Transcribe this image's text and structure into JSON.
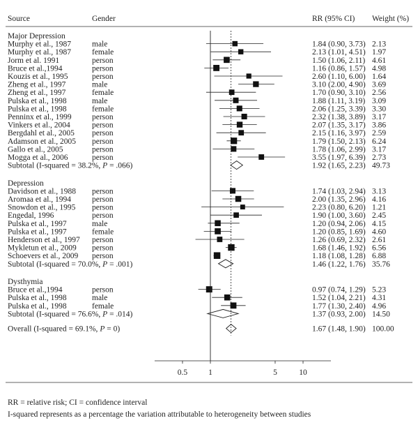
{
  "chart_data": {
    "type": "forest",
    "headers": {
      "source": "Source",
      "gender": "Gender",
      "rr": "RR (95% CI)",
      "weight": "Weight (%)"
    },
    "x_axis": {
      "scale": "log",
      "ticks": [
        0.5,
        1,
        5,
        10
      ],
      "tick_labels": [
        "0.5",
        "1",
        "5",
        "10"
      ],
      "range": [
        0.25,
        20
      ],
      "null_line": 1,
      "overall_line": 1.67
    },
    "groups": [
      {
        "name": "Major Depression",
        "studies": [
          {
            "source": "Murphy et al., 1987",
            "gender": "male",
            "rr": 1.84,
            "lo": 0.9,
            "hi": 3.73,
            "rr_text": "1.84 (0.90, 3.73)",
            "weight": "2.13"
          },
          {
            "source": "Murphy et al., 1987",
            "gender": "female",
            "rr": 2.13,
            "lo": 1.01,
            "hi": 4.51,
            "rr_text": "2.13 (1.01, 4.51)",
            "weight": "1.97"
          },
          {
            "source": "Jorm et al. 1991",
            "gender": "person",
            "rr": 1.5,
            "lo": 1.06,
            "hi": 2.11,
            "rr_text": "1.50 (1.06, 2.11)",
            "weight": "4.61"
          },
          {
            "source": "Bruce et al.,1994",
            "gender": "person",
            "rr": 1.16,
            "lo": 0.86,
            "hi": 1.57,
            "rr_text": "1.16 (0.86, 1.57)",
            "weight": "4.98"
          },
          {
            "source": "Kouzis et al., 1995",
            "gender": "person",
            "rr": 2.6,
            "lo": 1.1,
            "hi": 6.0,
            "rr_text": "2.60 (1.10, 6.00)",
            "weight": "1.64"
          },
          {
            "source": "Zheng et al., 1997",
            "gender": "male",
            "rr": 3.1,
            "lo": 2.0,
            "hi": 4.9,
            "rr_text": "3.10 (2.00, 4.90)",
            "weight": "3.69"
          },
          {
            "source": "Zheng et al., 1997",
            "gender": "female",
            "rr": 1.7,
            "lo": 0.9,
            "hi": 3.1,
            "rr_text": "1.70 (0.90, 3.10)",
            "weight": "2.56"
          },
          {
            "source": "Pulska et al., 1998",
            "gender": "male",
            "rr": 1.88,
            "lo": 1.11,
            "hi": 3.19,
            "rr_text": "1.88 (1.11, 3.19)",
            "weight": "3.09"
          },
          {
            "source": "Pulska et al., 1998",
            "gender": "female",
            "rr": 2.06,
            "lo": 1.25,
            "hi": 3.39,
            "rr_text": "2.06 (1.25, 3.39)",
            "weight": "3.30"
          },
          {
            "source": "Penninx et al., 1999",
            "gender": "person",
            "rr": 2.32,
            "lo": 1.38,
            "hi": 3.89,
            "rr_text": "2.32 (1.38, 3.89)",
            "weight": "3.17"
          },
          {
            "source": "Vinkers  et al., 2004",
            "gender": "person",
            "rr": 2.07,
            "lo": 1.35,
            "hi": 3.17,
            "rr_text": "2.07  (1.35, 3.17)",
            "weight": "3.86"
          },
          {
            "source": "Bergdahl et al., 2005",
            "gender": "person",
            "rr": 2.15,
            "lo": 1.16,
            "hi": 3.97,
            "rr_text": "2.15 (1.16, 3.97)",
            "weight": "2.59"
          },
          {
            "source": "Adamson et al., 2005",
            "gender": "person",
            "rr": 1.79,
            "lo": 1.5,
            "hi": 2.13,
            "rr_text": "1.79 (1.50, 2.13)",
            "weight": "6.24"
          },
          {
            "source": "Gallo et al., 2005",
            "gender": "person",
            "rr": 1.78,
            "lo": 1.06,
            "hi": 2.99,
            "rr_text": "1.78 (1.06, 2.99)",
            "weight": "3.17"
          },
          {
            "source": "Mogga et al., 2006",
            "gender": "person",
            "rr": 3.55,
            "lo": 1.97,
            "hi": 6.39,
            "rr_text": "3.55 (1.97, 6.39)",
            "weight": "2.73"
          }
        ],
        "subtotal": {
          "prefix": "Subtotal (I-squared = 38.2%, ",
          "p_label": "P",
          "suffix": " = .066)",
          "rr": 1.92,
          "lo": 1.65,
          "hi": 2.23,
          "rr_text": "1.92 (1.65, 2.23)",
          "weight": "49.73"
        }
      },
      {
        "name": "Depression",
        "studies": [
          {
            "source": "Davidson et al., 1988",
            "gender": "person",
            "rr": 1.74,
            "lo": 1.03,
            "hi": 2.94,
            "rr_text": "1.74 (1.03, 2.94)",
            "weight": "3.13"
          },
          {
            "source": "Aromaa et al., 1994",
            "gender": "person",
            "rr": 2.0,
            "lo": 1.35,
            "hi": 2.96,
            "rr_text": "2.00 (1.35, 2.96)",
            "weight": "4.16"
          },
          {
            "source": "Snowdon et al., 1995",
            "gender": "person",
            "rr": 2.23,
            "lo": 0.8,
            "hi": 6.2,
            "rr_text": "2.23 (0.80, 6.20)",
            "weight": "1.21"
          },
          {
            "source": "Engedal, 1996",
            "gender": "person",
            "rr": 1.9,
            "lo": 1.0,
            "hi": 3.6,
            "rr_text": "1.90 (1.00, 3.60)",
            "weight": "2.45"
          },
          {
            "source": "Pulska et al., 1997",
            "gender": "male",
            "rr": 1.2,
            "lo": 0.94,
            "hi": 2.06,
            "rr_text": "1.20 (0.94, 2.06)",
            "weight": "4.15"
          },
          {
            "source": "Pulska et al., 1997",
            "gender": "female",
            "rr": 1.2,
            "lo": 0.85,
            "hi": 1.69,
            "rr_text": "1.20 (0.85, 1.69)",
            "weight": "4.60"
          },
          {
            "source": "Henderson et al., 1997",
            "gender": "person",
            "rr": 1.26,
            "lo": 0.69,
            "hi": 2.32,
            "rr_text": "1.26 (0.69, 2.32)",
            "weight": "2.61"
          },
          {
            "source": "Mykletun et al., 2009",
            "gender": "person",
            "rr": 1.68,
            "lo": 1.46,
            "hi": 1.92,
            "rr_text": "1.68 (1.46, 1.92)",
            "weight": "6.56"
          },
          {
            "source": "Schoevers et al., 2009",
            "gender": "person",
            "rr": 1.18,
            "lo": 1.08,
            "hi": 1.28,
            "rr_text": "1.18 (1.08, 1.28)",
            "weight": "6.88"
          }
        ],
        "subtotal": {
          "prefix": "Subtotal (I-squared = 70.0%, ",
          "p_label": "P",
          "suffix": " = .001)",
          "rr": 1.46,
          "lo": 1.22,
          "hi": 1.76,
          "rr_text": "1.46 (1.22, 1.76)",
          "weight": "35.76"
        }
      },
      {
        "name": "Dysthymia",
        "studies": [
          {
            "source": "Bruce et al.,1994",
            "gender": "person",
            "rr": 0.97,
            "lo": 0.74,
            "hi": 1.29,
            "rr_text": "0.97 (0.74, 1.29)",
            "weight": "5.23"
          },
          {
            "source": "Pulska et al., 1998",
            "gender": "male",
            "rr": 1.52,
            "lo": 1.04,
            "hi": 2.21,
            "rr_text": "1.52 (1.04, 2.21)",
            "weight": "4.31"
          },
          {
            "source": "Pulska et al., 1998",
            "gender": "female",
            "rr": 1.77,
            "lo": 1.3,
            "hi": 2.4,
            "rr_text": "1.77 (1.30, 2.40)",
            "weight": "4.96"
          }
        ],
        "subtotal": {
          "prefix": "Subtotal (I-squared = 76.6%, ",
          "p_label": "P",
          "suffix": " = .014)",
          "rr": 1.37,
          "lo": 0.93,
          "hi": 2.0,
          "rr_text": "1.37 (0.93, 2.00)",
          "weight": "14.50"
        }
      }
    ],
    "overall": {
      "prefix": "Overall (I-squared = 69.1%, ",
      "p_label": "P",
      "suffix": " = 0)",
      "rr": 1.67,
      "lo": 1.48,
      "hi": 1.9,
      "rr_text": "1.67 (1.48, 1.90)",
      "weight": "100.00"
    }
  },
  "footnotes": {
    "line1": "RR = relative risk; CI = confidence interval",
    "line2": "I-squared represents as a percentage the variation attributable to heterogeneity between studies"
  }
}
